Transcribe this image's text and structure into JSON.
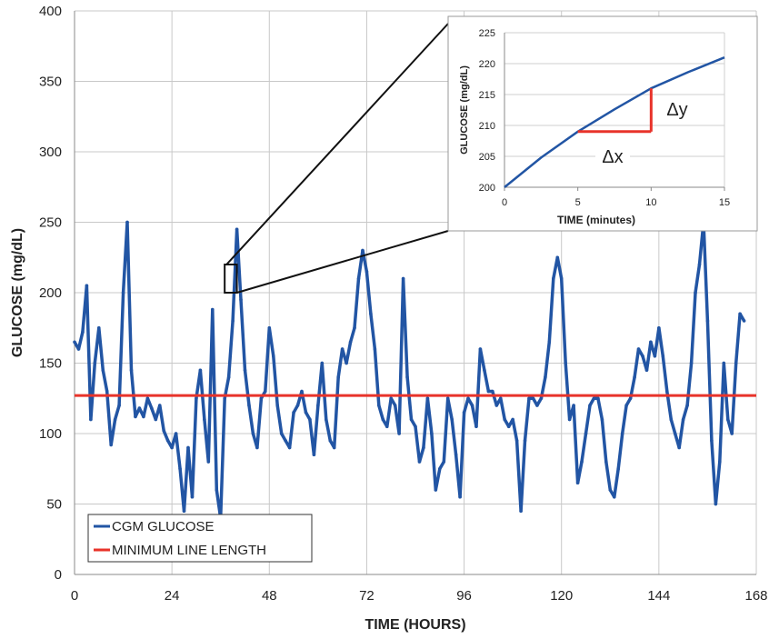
{
  "chart_data": [
    {
      "type": "line",
      "xlabel": "TIME (HOURS)",
      "ylabel": "GLUCOSE (mg/dL)",
      "xlim": [
        0,
        168
      ],
      "ylim": [
        0,
        400
      ],
      "xticks": [
        0,
        24,
        48,
        72,
        96,
        120,
        144,
        168
      ],
      "yticks": [
        0,
        50,
        100,
        150,
        200,
        250,
        300,
        350,
        400
      ],
      "grid": true,
      "legend_position": "bottom-left",
      "series": [
        {
          "name": "CGM GLUCOSE",
          "color": "#2255a4",
          "points": [
            [
              0,
              165
            ],
            [
              1,
              160
            ],
            [
              2,
              172
            ],
            [
              3,
              205
            ],
            [
              4,
              110
            ],
            [
              5,
              150
            ],
            [
              6,
              175
            ],
            [
              7,
              145
            ],
            [
              8,
              130
            ],
            [
              9,
              92
            ],
            [
              10,
              110
            ],
            [
              11,
              120
            ],
            [
              12,
              200
            ],
            [
              13,
              250
            ],
            [
              14,
              145
            ],
            [
              15,
              112
            ],
            [
              16,
              118
            ],
            [
              17,
              112
            ],
            [
              18,
              125
            ],
            [
              19,
              118
            ],
            [
              20,
              110
            ],
            [
              21,
              120
            ],
            [
              22,
              102
            ],
            [
              23,
              95
            ],
            [
              24,
              90
            ],
            [
              25,
              100
            ],
            [
              26,
              75
            ],
            [
              27,
              45
            ],
            [
              28,
              90
            ],
            [
              29,
              55
            ],
            [
              30,
              125
            ],
            [
              31,
              145
            ],
            [
              32,
              110
            ],
            [
              33,
              80
            ],
            [
              34,
              188
            ],
            [
              35,
              60
            ],
            [
              36,
              40
            ],
            [
              37,
              125
            ],
            [
              38,
              140
            ],
            [
              39,
              180
            ],
            [
              40,
              245
            ],
            [
              41,
              195
            ],
            [
              42,
              145
            ],
            [
              43,
              120
            ],
            [
              44,
              100
            ],
            [
              45,
              90
            ],
            [
              46,
              125
            ],
            [
              47,
              130
            ],
            [
              48,
              175
            ],
            [
              49,
              155
            ],
            [
              50,
              120
            ],
            [
              51,
              100
            ],
            [
              52,
              95
            ],
            [
              53,
              90
            ],
            [
              54,
              115
            ],
            [
              55,
              120
            ],
            [
              56,
              130
            ],
            [
              57,
              115
            ],
            [
              58,
              110
            ],
            [
              59,
              85
            ],
            [
              60,
              120
            ],
            [
              61,
              150
            ],
            [
              62,
              110
            ],
            [
              63,
              95
            ],
            [
              64,
              90
            ],
            [
              65,
              140
            ],
            [
              66,
              160
            ],
            [
              67,
              150
            ],
            [
              68,
              165
            ],
            [
              69,
              175
            ],
            [
              70,
              210
            ],
            [
              71,
              230
            ],
            [
              72,
              215
            ],
            [
              73,
              185
            ],
            [
              74,
              160
            ],
            [
              75,
              120
            ],
            [
              76,
              110
            ],
            [
              77,
              105
            ],
            [
              78,
              125
            ],
            [
              79,
              120
            ],
            [
              80,
              100
            ],
            [
              81,
              210
            ],
            [
              82,
              140
            ],
            [
              83,
              110
            ],
            [
              84,
              105
            ],
            [
              85,
              80
            ],
            [
              86,
              90
            ],
            [
              87,
              125
            ],
            [
              88,
              100
            ],
            [
              89,
              60
            ],
            [
              90,
              75
            ],
            [
              91,
              80
            ],
            [
              92,
              125
            ],
            [
              93,
              110
            ],
            [
              94,
              85
            ],
            [
              95,
              55
            ],
            [
              96,
              115
            ],
            [
              97,
              125
            ],
            [
              98,
              120
            ],
            [
              99,
              105
            ],
            [
              100,
              160
            ],
            [
              101,
              145
            ],
            [
              102,
              130
            ],
            [
              103,
              130
            ],
            [
              104,
              120
            ],
            [
              105,
              125
            ],
            [
              106,
              110
            ],
            [
              107,
              105
            ],
            [
              108,
              110
            ],
            [
              109,
              95
            ],
            [
              110,
              45
            ],
            [
              111,
              95
            ],
            [
              112,
              125
            ],
            [
              113,
              125
            ],
            [
              114,
              120
            ],
            [
              115,
              125
            ],
            [
              116,
              140
            ],
            [
              117,
              165
            ],
            [
              118,
              210
            ],
            [
              119,
              225
            ],
            [
              120,
              210
            ],
            [
              121,
              150
            ],
            [
              122,
              110
            ],
            [
              123,
              120
            ],
            [
              124,
              65
            ],
            [
              125,
              80
            ],
            [
              126,
              100
            ],
            [
              127,
              120
            ],
            [
              128,
              125
            ],
            [
              129,
              125
            ],
            [
              130,
              110
            ],
            [
              131,
              80
            ],
            [
              132,
              60
            ],
            [
              133,
              55
            ],
            [
              134,
              75
            ],
            [
              135,
              100
            ],
            [
              136,
              120
            ],
            [
              137,
              125
            ],
            [
              138,
              140
            ],
            [
              139,
              160
            ],
            [
              140,
              155
            ],
            [
              141,
              145
            ],
            [
              142,
              165
            ],
            [
              143,
              155
            ],
            [
              144,
              175
            ],
            [
              145,
              155
            ],
            [
              146,
              130
            ],
            [
              147,
              110
            ],
            [
              148,
              100
            ],
            [
              149,
              90
            ],
            [
              150,
              110
            ],
            [
              151,
              120
            ],
            [
              152,
              150
            ],
            [
              153,
              200
            ],
            [
              154,
              220
            ],
            [
              155,
              250
            ],
            [
              156,
              180
            ],
            [
              157,
              95
            ],
            [
              158,
              50
            ],
            [
              159,
              80
            ],
            [
              160,
              150
            ],
            [
              161,
              110
            ],
            [
              162,
              100
            ],
            [
              163,
              150
            ],
            [
              164,
              185
            ],
            [
              165,
              180
            ]
          ]
        },
        {
          "name": "MINIMUM LINE LENGTH",
          "color": "#e8332a",
          "points": [
            [
              0,
              127
            ],
            [
              168,
              127
            ]
          ]
        }
      ]
    },
    {
      "type": "line",
      "xlabel": "TIME (minutes)",
      "ylabel": "GLUCOSE (mg/dL)",
      "xlim": [
        0,
        15
      ],
      "ylim": [
        200,
        225
      ],
      "xticks": [
        0,
        5,
        10,
        15
      ],
      "yticks": [
        200,
        205,
        210,
        215,
        220,
        225
      ],
      "grid": true,
      "series": [
        {
          "color": "#2255a4",
          "points": [
            [
              0,
              200
            ],
            [
              2.5,
              204.8
            ],
            [
              5,
              209
            ],
            [
              7.5,
              212.6
            ],
            [
              10,
              216
            ],
            [
              12.5,
              218.6
            ],
            [
              15,
              221
            ]
          ]
        }
      ],
      "annotations": {
        "dx_label": "Δx",
        "dy_label": "Δy",
        "dx_from": [
          5,
          209
        ],
        "dx_to": [
          10,
          209
        ],
        "dy_from": [
          10,
          209
        ],
        "dy_to": [
          10,
          216
        ],
        "color": "#e8332a"
      }
    }
  ],
  "zoom_region": {
    "x": [
      37,
      40
    ],
    "y": [
      200,
      220
    ]
  }
}
